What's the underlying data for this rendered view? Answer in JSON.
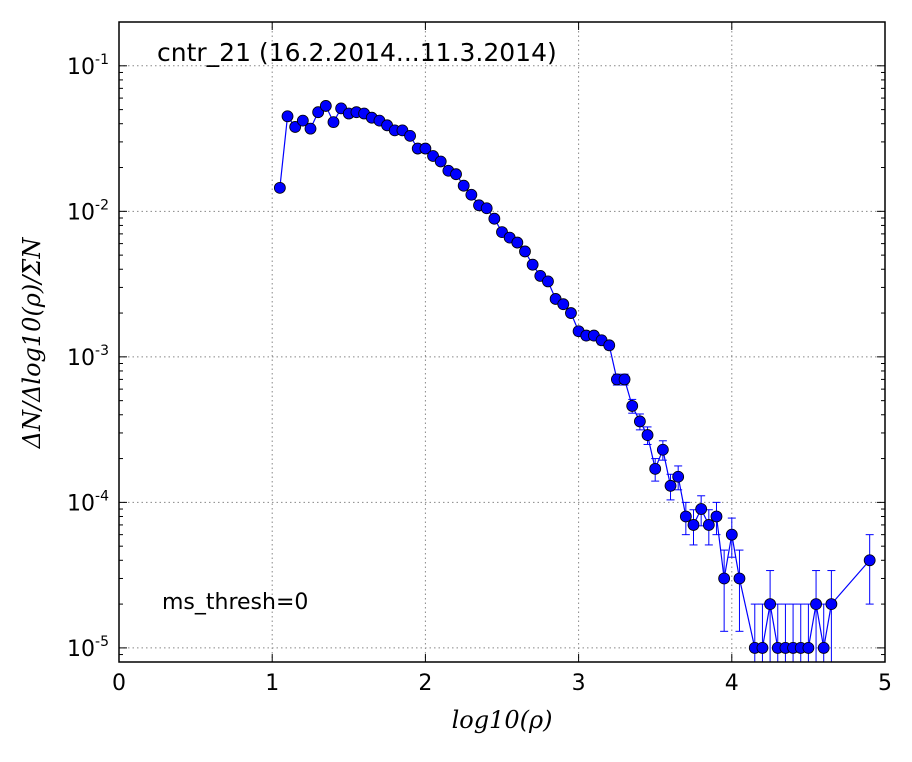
{
  "chart_data": {
    "type": "line",
    "title": "cntr_21 (16.2.2014...11.3.2014)",
    "annotation": "ms_thresh=0",
    "xlabel": "log10(ρ)",
    "ylabel": "ΔN/Δlog10(ρ)/ΣN",
    "xlim": [
      0,
      5
    ],
    "ylim": [
      8e-06,
      0.2
    ],
    "yscale": "log",
    "grid": true,
    "x_ticks": [
      {
        "value": 0,
        "label": "0"
      },
      {
        "value": 1,
        "label": "1"
      },
      {
        "value": 2,
        "label": "2"
      },
      {
        "value": 3,
        "label": "3"
      },
      {
        "value": 4,
        "label": "4"
      },
      {
        "value": 5,
        "label": "5"
      }
    ],
    "y_ticks": [
      {
        "value": 1e-05,
        "base": "10",
        "exp": "-5"
      },
      {
        "value": 0.0001,
        "base": "10",
        "exp": "-4"
      },
      {
        "value": 0.001,
        "base": "10",
        "exp": "-3"
      },
      {
        "value": 0.01,
        "base": "10",
        "exp": "-2"
      },
      {
        "value": 0.1,
        "base": "10",
        "exp": "-1"
      }
    ],
    "series": [
      {
        "color": "#0000ff",
        "marker": "circle",
        "x": [
          1.05,
          1.1,
          1.15,
          1.2,
          1.25,
          1.3,
          1.35,
          1.4,
          1.45,
          1.5,
          1.55,
          1.6,
          1.65,
          1.7,
          1.75,
          1.8,
          1.85,
          1.9,
          1.95,
          2.0,
          2.05,
          2.1,
          2.15,
          2.2,
          2.25,
          2.3,
          2.35,
          2.4,
          2.45,
          2.5,
          2.55,
          2.6,
          2.65,
          2.7,
          2.75,
          2.8,
          2.85,
          2.9,
          2.95,
          3.0,
          3.05,
          3.1,
          3.15,
          3.2,
          3.25,
          3.3,
          3.35,
          3.4,
          3.45,
          3.5,
          3.55,
          3.6,
          3.65,
          3.7,
          3.75,
          3.8,
          3.85,
          3.9,
          3.95,
          4.0,
          4.05,
          4.15,
          4.2,
          4.25,
          4.3,
          4.35,
          4.4,
          4.45,
          4.5,
          4.55,
          4.6,
          4.65,
          4.9
        ],
        "y": [
          0.0145,
          0.045,
          0.038,
          0.042,
          0.037,
          0.048,
          0.053,
          0.041,
          0.051,
          0.047,
          0.048,
          0.047,
          0.044,
          0.042,
          0.039,
          0.036,
          0.036,
          0.033,
          0.027,
          0.027,
          0.024,
          0.022,
          0.019,
          0.018,
          0.015,
          0.013,
          0.011,
          0.0105,
          0.0089,
          0.0072,
          0.0066,
          0.0061,
          0.0053,
          0.0043,
          0.0036,
          0.0033,
          0.0025,
          0.0023,
          0.002,
          0.0015,
          0.0014,
          0.0014,
          0.0013,
          0.0012,
          0.0007,
          0.0007,
          0.00046,
          0.00036,
          0.00029,
          0.00017,
          0.00023,
          0.00013,
          0.00015,
          8e-05,
          7e-05,
          9e-05,
          7e-05,
          8e-05,
          3e-05,
          6e-05,
          3e-05,
          1e-05,
          1e-05,
          2e-05,
          1e-05,
          1e-05,
          1e-05,
          1e-05,
          1e-05,
          2e-05,
          1e-05,
          2e-05,
          4e-05
        ],
        "yerr": [
          0.0003,
          0.0007,
          0.0006,
          0.0007,
          0.0006,
          0.0007,
          0.0008,
          0.0006,
          0.0007,
          0.0007,
          0.0007,
          0.0007,
          0.0006,
          0.0006,
          0.0006,
          0.0006,
          0.0006,
          0.0005,
          0.0005,
          0.0005,
          0.0004,
          0.0004,
          0.0004,
          0.0004,
          0.0003,
          0.0003,
          0.0003,
          0.0003,
          0.0003,
          0.0002,
          0.0002,
          0.0002,
          0.0002,
          0.00018,
          0.00016,
          0.00015,
          0.00013,
          0.00012,
          0.00011,
          0.0001,
          9e-05,
          9e-05,
          9e-05,
          8e-05,
          6e-05,
          6e-05,
          5e-05,
          4.5e-05,
          4e-05,
          3e-05,
          3.5e-05,
          2.6e-05,
          2.8e-05,
          2e-05,
          1.9e-05,
          2.1e-05,
          1.9e-05,
          2e-05,
          1.7e-05,
          1.8e-05,
          1.7e-05,
          1e-05,
          1e-05,
          1.4e-05,
          1e-05,
          1e-05,
          1e-05,
          1e-05,
          1e-05,
          1.4e-05,
          1e-05,
          1.4e-05,
          2e-05
        ]
      }
    ]
  }
}
